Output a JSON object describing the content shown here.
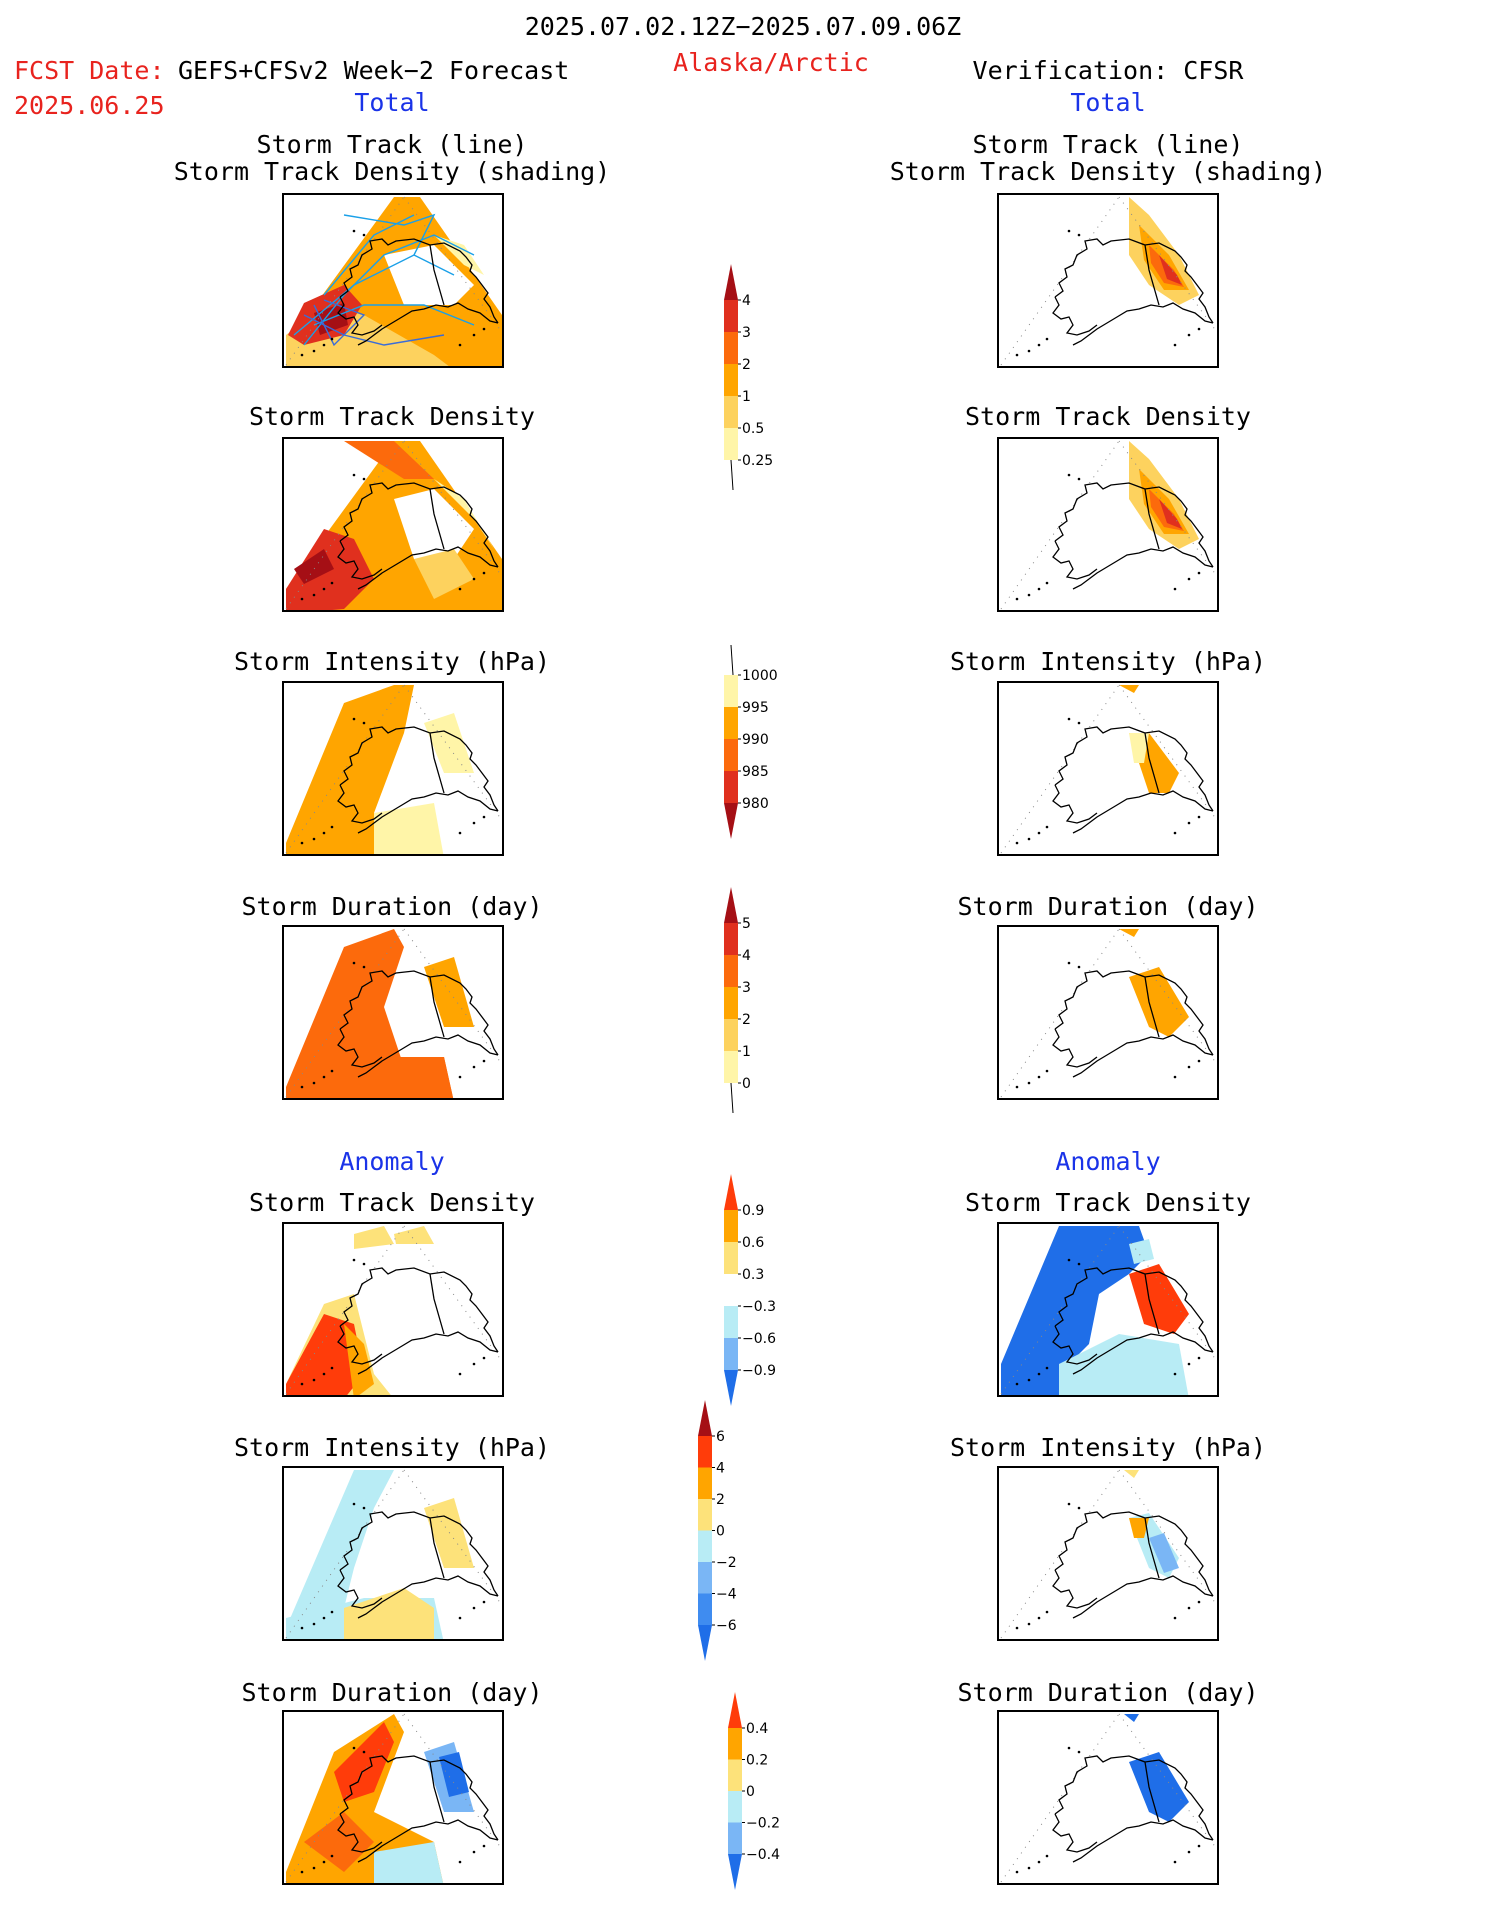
{
  "header": {
    "period": "2025.07.02.12Z−2025.07.09.06Z",
    "fcst_date_label": "FCST Date:",
    "fcst_model": "GEFS+CFSv2 Week−2 Forecast",
    "fcst_date_value": "2025.06.25",
    "region": "Alaska/Arctic",
    "verification": "Verification: CFSR"
  },
  "columns": {
    "left_total": "Total",
    "right_total": "Total",
    "left_anomaly": "Anomaly",
    "right_anomaly": "Anomaly"
  },
  "panel_titles": {
    "track_line": "Storm Track (line)",
    "track_shading": "Storm Track Density (shading)",
    "density": "Storm Track Density",
    "intensity": "Storm Intensity (hPa)",
    "duration": "Storm Duration (day)"
  },
  "chart_data": [
    {
      "type": "heatmap",
      "name": "Total Storm Track Density colorbar",
      "levels": [
        "4",
        "3",
        "2",
        "1",
        "0.5",
        "0.25"
      ],
      "colors": [
        "#a50f15",
        "#e0301e",
        "#fc6a0c",
        "#ffa500",
        "#fdd25e",
        "#fff5a8"
      ]
    },
    {
      "type": "heatmap",
      "name": "Total Storm Intensity colorbar",
      "levels": [
        "1000",
        "995",
        "990",
        "985",
        "980"
      ],
      "colors": [
        "#fff5a8",
        "#ffa500",
        "#fc6a0c",
        "#e0301e",
        "#a50f15"
      ]
    },
    {
      "type": "heatmap",
      "name": "Total Storm Duration colorbar",
      "levels": [
        "5",
        "4",
        "3",
        "2",
        "1",
        "0"
      ],
      "colors": [
        "#a50f15",
        "#e0301e",
        "#fc6a0c",
        "#ffa500",
        "#fdd25e",
        "#fff5a8"
      ]
    },
    {
      "type": "heatmap",
      "name": "Anomaly Storm Track Density colorbar",
      "levels": [
        "0.9",
        "0.6",
        "0.3",
        "−0.3",
        "−0.6",
        "−0.9"
      ],
      "colors": [
        "#ff3c0a",
        "#ffa500",
        "#fde27a",
        "#ffffff",
        "#b8ecf5",
        "#7ab6f5",
        "#1f6ee8"
      ]
    },
    {
      "type": "heatmap",
      "name": "Anomaly Storm Intensity colorbar",
      "levels": [
        "6",
        "4",
        "2",
        "0",
        "−2",
        "−4",
        "−6"
      ],
      "colors": [
        "#a50f15",
        "#ff3c0a",
        "#ffa500",
        "#fde27a",
        "#b8ecf5",
        "#7ab6f5",
        "#3f8cf0",
        "#1f6ee8"
      ]
    },
    {
      "type": "heatmap",
      "name": "Anomaly Storm Duration colorbar",
      "levels": [
        "0.4",
        "0.2",
        "0",
        "−0.2",
        "−0.4"
      ],
      "colors": [
        "#ff3c0a",
        "#ffa500",
        "#fde27a",
        "#b8ecf5",
        "#7ab6f5",
        "#1f6ee8"
      ]
    }
  ]
}
